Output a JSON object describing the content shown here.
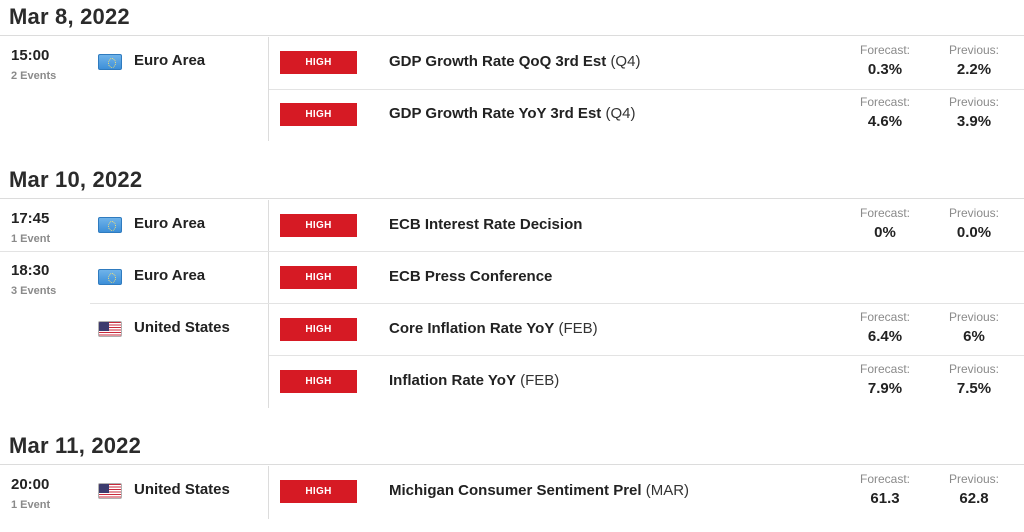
{
  "days": [
    {
      "date": "Mar 8, 2022",
      "times": [
        {
          "time": "15:00",
          "count": "2 Events",
          "countries": [
            {
              "country": "Euro Area",
              "flag": "eu-flag-icon",
              "events": [
                {
                  "impact": "HIGH",
                  "name": "GDP Growth Rate QoQ 3rd Est",
                  "period": "(Q4)",
                  "forecast_label": "Forecast:",
                  "forecast": "0.3%",
                  "previous_label": "Previous:",
                  "previous": "2.2%"
                },
                {
                  "impact": "HIGH",
                  "name": "GDP Growth Rate YoY 3rd Est",
                  "period": "(Q4)",
                  "forecast_label": "Forecast:",
                  "forecast": "4.6%",
                  "previous_label": "Previous:",
                  "previous": "3.9%"
                }
              ]
            }
          ]
        }
      ]
    },
    {
      "date": "Mar 10, 2022",
      "times": [
        {
          "time": "17:45",
          "count": "1 Event",
          "countries": [
            {
              "country": "Euro Area",
              "flag": "eu-flag-icon",
              "events": [
                {
                  "impact": "HIGH",
                  "name": "ECB Interest Rate Decision",
                  "period": "",
                  "forecast_label": "Forecast:",
                  "forecast": "0%",
                  "previous_label": "Previous:",
                  "previous": "0.0%"
                }
              ]
            }
          ]
        },
        {
          "time": "18:30",
          "count": "3 Events",
          "countries": [
            {
              "country": "Euro Area",
              "flag": "eu-flag-icon",
              "events": [
                {
                  "impact": "HIGH",
                  "name": "ECB Press Conference",
                  "period": "",
                  "forecast_label": "",
                  "forecast": "",
                  "previous_label": "",
                  "previous": ""
                }
              ]
            },
            {
              "country": "United States",
              "flag": "us-flag-icon",
              "events": [
                {
                  "impact": "HIGH",
                  "name": "Core Inflation Rate YoY",
                  "period": "(FEB)",
                  "forecast_label": "Forecast:",
                  "forecast": "6.4%",
                  "previous_label": "Previous:",
                  "previous": "6%"
                },
                {
                  "impact": "HIGH",
                  "name": "Inflation Rate YoY",
                  "period": "(FEB)",
                  "forecast_label": "Forecast:",
                  "forecast": "7.9%",
                  "previous_label": "Previous:",
                  "previous": "7.5%"
                }
              ]
            }
          ]
        }
      ]
    },
    {
      "date": "Mar 11, 2022",
      "times": [
        {
          "time": "20:00",
          "count": "1 Event",
          "countries": [
            {
              "country": "United States",
              "flag": "us-flag-icon",
              "events": [
                {
                  "impact": "HIGH",
                  "name": "Michigan Consumer Sentiment Prel",
                  "period": "(MAR)",
                  "forecast_label": "Forecast:",
                  "forecast": "61.3",
                  "previous_label": "Previous:",
                  "previous": "62.8"
                }
              ]
            }
          ]
        }
      ]
    }
  ],
  "colors": {
    "impact_high": "#d61a24",
    "date_text": "#2b2b2b",
    "muted_text": "#8a8a8a"
  }
}
